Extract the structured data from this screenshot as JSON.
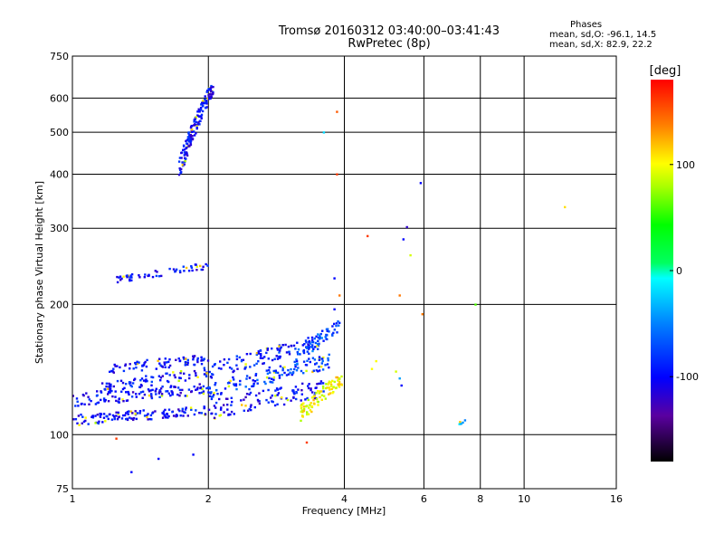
{
  "title_line1": "Tromsø 20160312 03:40:00–03:41:43",
  "title_line2": "RwPretec (8p)",
  "phases": {
    "heading": "Phases",
    "o_stats": "mean, sd,O: -96.1, 14.5",
    "x_stats": "mean, sd,X: 82.9, 22.2"
  },
  "chart_data": {
    "type": "scatter",
    "xlabel": "Frequency [MHz]",
    "ylabel": "Stationary phase Virtual Height [km]",
    "x_scale": "log",
    "y_scale": "log",
    "xlim": [
      1,
      16
    ],
    "ylim": [
      75,
      750
    ],
    "x_ticks": [
      {
        "v": 1,
        "label": "1"
      },
      {
        "v": 2,
        "label": "2"
      },
      {
        "v": 4,
        "label": "4"
      },
      {
        "v": 6,
        "label": "6"
      },
      {
        "v": 8,
        "label": "8"
      },
      {
        "v": 10,
        "label": "10"
      },
      {
        "v": 16,
        "label": "16"
      }
    ],
    "y_ticks": [
      {
        "v": 75,
        "label": "75"
      },
      {
        "v": 100,
        "label": "100"
      },
      {
        "v": 200,
        "label": "200"
      },
      {
        "v": 300,
        "label": "300"
      },
      {
        "v": 400,
        "label": "400"
      },
      {
        "v": 500,
        "label": "500"
      },
      {
        "v": 600,
        "label": "600"
      },
      {
        "v": 750,
        "label": "750"
      }
    ],
    "grid": true,
    "colorbar": {
      "label": "[deg]",
      "min": -180,
      "max": 180,
      "ticks": [
        {
          "v": 100,
          "label": "100"
        },
        {
          "v": 0,
          "label": "0"
        },
        {
          "v": -100,
          "label": "-100"
        }
      ]
    },
    "clusters": [
      {
        "fmin": 1.0,
        "fmax": 1.97,
        "h0": 108,
        "h1": 114,
        "n": 130,
        "phase": -100,
        "spread": 3
      },
      {
        "fmin": 1.0,
        "fmax": 2.0,
        "h0": 120,
        "h1": 128,
        "n": 120,
        "phase": -100,
        "spread": 4
      },
      {
        "fmin": 1.1,
        "fmax": 2.0,
        "h0": 127,
        "h1": 140,
        "n": 80,
        "phase": -95,
        "spread": 4
      },
      {
        "fmin": 1.2,
        "fmax": 2.0,
        "h0": 142,
        "h1": 150,
        "n": 80,
        "phase": -100,
        "spread": 4
      },
      {
        "fmin": 2.0,
        "fmax": 3.6,
        "h0": 114,
        "h1": 128,
        "n": 110,
        "phase": -100,
        "spread": 6
      },
      {
        "fmin": 2.0,
        "fmax": 3.7,
        "h0": 126,
        "h1": 148,
        "n": 130,
        "phase": -80,
        "spread": 6
      },
      {
        "fmin": 2.0,
        "fmax": 3.6,
        "h0": 140,
        "h1": 165,
        "n": 110,
        "phase": -90,
        "spread": 6
      },
      {
        "fmin": 3.1,
        "fmax": 3.9,
        "h0": 150,
        "h1": 180,
        "n": 60,
        "phase": -70,
        "spread": 6
      },
      {
        "fmin": 3.2,
        "fmax": 3.95,
        "h0": 112,
        "h1": 135,
        "n": 90,
        "phase": 100,
        "spread": 5
      },
      {
        "fmin": 1.72,
        "fmax": 2.05,
        "h0": 410,
        "h1": 640,
        "n": 150,
        "phase": -100,
        "spread": 25
      },
      {
        "fmin": 1.25,
        "fmax": 2.0,
        "h0": 228,
        "h1": 246,
        "n": 55,
        "phase": -100,
        "spread": 4
      },
      {
        "fmin": 7.1,
        "fmax": 7.4,
        "h0": 106,
        "h1": 108,
        "n": 6,
        "phase": -40,
        "spread": 1
      }
    ],
    "points": [
      {
        "f": 3.85,
        "h": 558,
        "phase": 150
      },
      {
        "f": 3.6,
        "h": 500,
        "phase": -20
      },
      {
        "f": 3.85,
        "h": 400,
        "phase": 160
      },
      {
        "f": 4.5,
        "h": 288,
        "phase": 160
      },
      {
        "f": 5.5,
        "h": 302,
        "phase": -120
      },
      {
        "f": 5.4,
        "h": 283,
        "phase": -100
      },
      {
        "f": 5.6,
        "h": 260,
        "phase": 90
      },
      {
        "f": 5.9,
        "h": 382,
        "phase": -100
      },
      {
        "f": 5.3,
        "h": 210,
        "phase": 140
      },
      {
        "f": 5.95,
        "h": 190,
        "phase": 140
      },
      {
        "f": 3.8,
        "h": 230,
        "phase": -100
      },
      {
        "f": 3.9,
        "h": 210,
        "phase": 140
      },
      {
        "f": 4.7,
        "h": 148,
        "phase": 100
      },
      {
        "f": 4.6,
        "h": 142,
        "phase": 100
      },
      {
        "f": 5.2,
        "h": 140,
        "phase": 90
      },
      {
        "f": 5.3,
        "h": 135,
        "phase": -40
      },
      {
        "f": 5.35,
        "h": 130,
        "phase": -100
      },
      {
        "f": 12.3,
        "h": 336,
        "phase": 110
      },
      {
        "f": 7.8,
        "h": 200,
        "phase": 60
      },
      {
        "f": 1.25,
        "h": 98,
        "phase": 160
      },
      {
        "f": 1.35,
        "h": 82,
        "phase": -100
      },
      {
        "f": 1.85,
        "h": 90,
        "phase": -100
      },
      {
        "f": 1.55,
        "h": 88,
        "phase": -100
      },
      {
        "f": 3.3,
        "h": 96,
        "phase": 160
      },
      {
        "f": 3.8,
        "h": 195,
        "phase": -100
      }
    ]
  }
}
